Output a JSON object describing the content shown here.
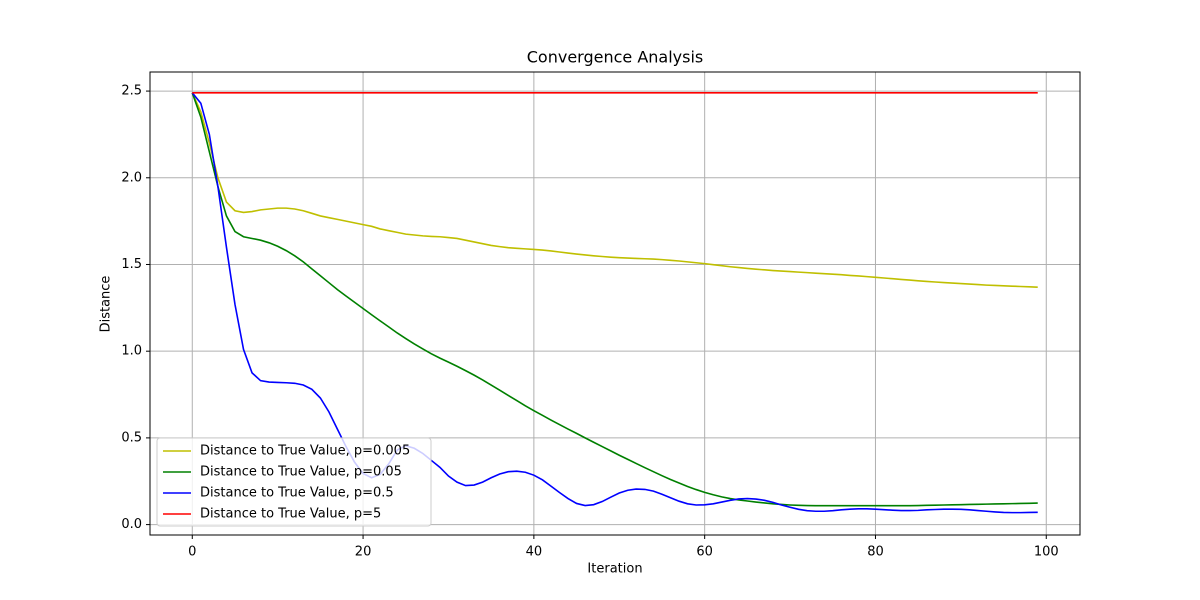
{
  "chart_data": {
    "type": "line",
    "title": "Convergence Analysis",
    "xlabel": "Iteration",
    "ylabel": "Distance",
    "x": [
      0,
      1,
      2,
      3,
      4,
      5,
      6,
      7,
      8,
      9,
      10,
      11,
      12,
      13,
      14,
      15,
      16,
      17,
      18,
      19,
      20,
      21,
      22,
      23,
      24,
      25,
      26,
      27,
      28,
      29,
      30,
      31,
      32,
      33,
      34,
      35,
      36,
      37,
      38,
      39,
      40,
      41,
      42,
      43,
      44,
      45,
      46,
      47,
      48,
      49,
      50,
      51,
      52,
      53,
      54,
      55,
      56,
      57,
      58,
      59,
      60,
      61,
      62,
      63,
      64,
      65,
      66,
      67,
      68,
      69,
      70,
      71,
      72,
      73,
      74,
      75,
      76,
      77,
      78,
      79,
      80,
      81,
      82,
      83,
      84,
      85,
      86,
      87,
      88,
      89,
      90,
      91,
      92,
      93,
      94,
      95,
      96,
      97,
      98,
      99
    ],
    "series": [
      {
        "name": "Distance to True Value, p=0.005",
        "color": "#bfbf00",
        "values": [
          2.49,
          2.38,
          2.2,
          2.0,
          1.86,
          1.81,
          1.8,
          1.805,
          1.815,
          1.82,
          1.825,
          1.825,
          1.82,
          1.81,
          1.795,
          1.78,
          1.77,
          1.76,
          1.75,
          1.74,
          1.73,
          1.72,
          1.705,
          1.695,
          1.685,
          1.675,
          1.67,
          1.665,
          1.662,
          1.66,
          1.655,
          1.65,
          1.64,
          1.63,
          1.62,
          1.61,
          1.603,
          1.597,
          1.593,
          1.59,
          1.587,
          1.583,
          1.578,
          1.572,
          1.566,
          1.56,
          1.555,
          1.55,
          1.546,
          1.542,
          1.539,
          1.537,
          1.535,
          1.533,
          1.531,
          1.528,
          1.524,
          1.52,
          1.515,
          1.51,
          1.505,
          1.499,
          1.493,
          1.487,
          1.482,
          1.477,
          1.473,
          1.469,
          1.465,
          1.462,
          1.459,
          1.456,
          1.453,
          1.45,
          1.447,
          1.444,
          1.441,
          1.437,
          1.434,
          1.43,
          1.426,
          1.422,
          1.418,
          1.414,
          1.41,
          1.406,
          1.402,
          1.399,
          1.396,
          1.393,
          1.39,
          1.387,
          1.384,
          1.381,
          1.379,
          1.377,
          1.375,
          1.373,
          1.371,
          1.369
        ]
      },
      {
        "name": "Distance to True Value, p=0.05",
        "color": "#008000",
        "values": [
          2.49,
          2.35,
          2.15,
          1.95,
          1.78,
          1.69,
          1.66,
          1.65,
          1.64,
          1.625,
          1.605,
          1.58,
          1.55,
          1.515,
          1.475,
          1.435,
          1.395,
          1.355,
          1.318,
          1.282,
          1.246,
          1.21,
          1.175,
          1.14,
          1.105,
          1.073,
          1.042,
          1.013,
          0.985,
          0.96,
          0.937,
          0.913,
          0.888,
          0.862,
          0.834,
          0.805,
          0.775,
          0.745,
          0.715,
          0.685,
          0.657,
          0.63,
          0.603,
          0.577,
          0.551,
          0.526,
          0.5,
          0.475,
          0.45,
          0.425,
          0.4,
          0.376,
          0.352,
          0.328,
          0.305,
          0.282,
          0.26,
          0.24,
          0.22,
          0.202,
          0.186,
          0.172,
          0.16,
          0.15,
          0.142,
          0.136,
          0.13,
          0.125,
          0.12,
          0.116,
          0.113,
          0.111,
          0.11,
          0.109,
          0.109,
          0.109,
          0.109,
          0.109,
          0.109,
          0.109,
          0.109,
          0.109,
          0.109,
          0.109,
          0.109,
          0.11,
          0.111,
          0.112,
          0.113,
          0.114,
          0.115,
          0.116,
          0.117,
          0.118,
          0.119,
          0.12,
          0.121,
          0.122,
          0.123,
          0.124
        ]
      },
      {
        "name": "Distance to True Value, p=0.5",
        "color": "#0000ff",
        "values": [
          2.49,
          2.43,
          2.25,
          1.95,
          1.6,
          1.27,
          1.01,
          0.875,
          0.83,
          0.822,
          0.82,
          0.818,
          0.815,
          0.805,
          0.78,
          0.73,
          0.65,
          0.55,
          0.45,
          0.36,
          0.295,
          0.27,
          0.29,
          0.35,
          0.43,
          0.455,
          0.44,
          0.41,
          0.37,
          0.33,
          0.28,
          0.245,
          0.225,
          0.228,
          0.245,
          0.27,
          0.292,
          0.305,
          0.308,
          0.302,
          0.285,
          0.258,
          0.222,
          0.185,
          0.15,
          0.122,
          0.11,
          0.115,
          0.133,
          0.158,
          0.182,
          0.198,
          0.205,
          0.203,
          0.193,
          0.175,
          0.155,
          0.135,
          0.12,
          0.113,
          0.114,
          0.12,
          0.13,
          0.14,
          0.148,
          0.15,
          0.147,
          0.14,
          0.128,
          0.113,
          0.1,
          0.088,
          0.08,
          0.077,
          0.077,
          0.08,
          0.085,
          0.089,
          0.091,
          0.091,
          0.089,
          0.086,
          0.083,
          0.081,
          0.081,
          0.082,
          0.085,
          0.087,
          0.089,
          0.089,
          0.088,
          0.085,
          0.081,
          0.077,
          0.073,
          0.07,
          0.069,
          0.069,
          0.07,
          0.071
        ]
      },
      {
        "name": "Distance to True Value, p=5",
        "color": "#ff0000",
        "values": [
          2.49,
          2.49,
          2.49,
          2.49,
          2.49,
          2.49,
          2.49,
          2.49,
          2.49,
          2.49,
          2.49,
          2.49,
          2.49,
          2.49,
          2.49,
          2.49,
          2.49,
          2.49,
          2.49,
          2.49,
          2.49,
          2.49,
          2.49,
          2.49,
          2.49,
          2.49,
          2.49,
          2.49,
          2.49,
          2.49,
          2.49,
          2.49,
          2.49,
          2.49,
          2.49,
          2.49,
          2.49,
          2.49,
          2.49,
          2.49,
          2.49,
          2.49,
          2.49,
          2.49,
          2.49,
          2.49,
          2.49,
          2.49,
          2.49,
          2.49,
          2.49,
          2.49,
          2.49,
          2.49,
          2.49,
          2.49,
          2.49,
          2.49,
          2.49,
          2.49,
          2.49,
          2.49,
          2.49,
          2.49,
          2.49,
          2.49,
          2.49,
          2.49,
          2.49,
          2.49,
          2.49,
          2.49,
          2.49,
          2.49,
          2.49,
          2.49,
          2.49,
          2.49,
          2.49,
          2.49,
          2.49,
          2.49,
          2.49,
          2.49,
          2.49,
          2.49,
          2.49,
          2.49,
          2.49,
          2.49,
          2.49,
          2.49,
          2.49,
          2.49,
          2.49,
          2.49,
          2.49,
          2.49,
          2.49,
          2.49
        ]
      }
    ],
    "xlim": [
      -4.95,
      103.95
    ],
    "ylim": [
      -0.06,
      2.61
    ],
    "xticks": [
      0,
      20,
      40,
      60,
      80,
      100
    ],
    "yticks": [
      {
        "value": 0,
        "label": "0.0"
      },
      0.5,
      {
        "value": 1,
        "label": "1.0"
      },
      1.5,
      {
        "value": 2,
        "label": "2.0"
      },
      2.5
    ],
    "grid": true,
    "legend": "lower left"
  }
}
